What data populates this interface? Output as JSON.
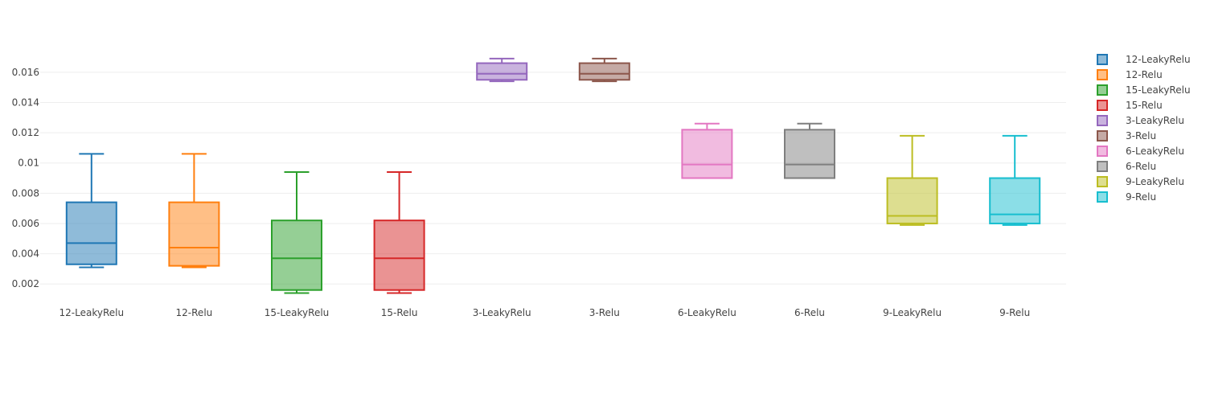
{
  "chart_data": {
    "type": "box",
    "title": "",
    "xlabel": "",
    "ylabel": "",
    "ylim": [
      0.001,
      0.0178
    ],
    "y_ticks": [
      {
        "value": 0.002,
        "label": "0.002"
      },
      {
        "value": 0.004,
        "label": "0.004"
      },
      {
        "value": 0.006,
        "label": "0.006"
      },
      {
        "value": 0.008,
        "label": "0.008"
      },
      {
        "value": 0.01,
        "label": "0.01"
      },
      {
        "value": 0.012,
        "label": "0.012"
      },
      {
        "value": 0.014,
        "label": "0.014"
      },
      {
        "value": 0.016,
        "label": "0.016"
      }
    ],
    "grid": true,
    "legend_position": "right",
    "categories": [
      "12-LeakyRelu",
      "12-Relu",
      "15-LeakyRelu",
      "15-Relu",
      "3-LeakyRelu",
      "3-Relu",
      "6-LeakyRelu",
      "6-Relu",
      "9-LeakyRelu",
      "9-Relu"
    ],
    "series": [
      {
        "name": "12-LeakyRelu",
        "color": "#1f77b4",
        "min": 0.0031,
        "q1": 0.0033,
        "median": 0.0047,
        "q3": 0.0074,
        "max": 0.0106
      },
      {
        "name": "12-Relu",
        "color": "#ff7f0e",
        "min": 0.0031,
        "q1": 0.0032,
        "median": 0.0044,
        "q3": 0.0074,
        "max": 0.0106
      },
      {
        "name": "15-LeakyRelu",
        "color": "#2ca02c",
        "min": 0.0014,
        "q1": 0.0016,
        "median": 0.0037,
        "q3": 0.0062,
        "max": 0.0094
      },
      {
        "name": "15-Relu",
        "color": "#d62728",
        "min": 0.0014,
        "q1": 0.0016,
        "median": 0.0037,
        "q3": 0.0062,
        "max": 0.0094
      },
      {
        "name": "3-LeakyRelu",
        "color": "#9467bd",
        "min": 0.0154,
        "q1": 0.0155,
        "median": 0.0159,
        "q3": 0.0166,
        "max": 0.0169
      },
      {
        "name": "3-Relu",
        "color": "#8c564b",
        "min": 0.0154,
        "q1": 0.0155,
        "median": 0.0159,
        "q3": 0.0166,
        "max": 0.0169
      },
      {
        "name": "6-LeakyRelu",
        "color": "#e377c2",
        "min": 0.009,
        "q1": 0.009,
        "median": 0.0099,
        "q3": 0.0122,
        "max": 0.0126
      },
      {
        "name": "6-Relu",
        "color": "#7f7f7f",
        "min": 0.009,
        "q1": 0.009,
        "median": 0.0099,
        "q3": 0.0122,
        "max": 0.0126
      },
      {
        "name": "9-LeakyRelu",
        "color": "#bcbd22",
        "min": 0.0059,
        "q1": 0.006,
        "median": 0.0065,
        "q3": 0.009,
        "max": 0.0118
      },
      {
        "name": "9-Relu",
        "color": "#17becf",
        "min": 0.0059,
        "q1": 0.006,
        "median": 0.0066,
        "q3": 0.009,
        "max": 0.0118
      }
    ]
  }
}
